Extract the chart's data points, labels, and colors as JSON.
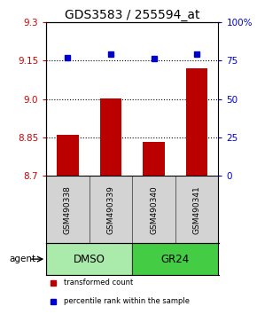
{
  "title": "GDS3583 / 255594_at",
  "samples": [
    "GSM490338",
    "GSM490339",
    "GSM490340",
    "GSM490341"
  ],
  "bar_values": [
    8.862,
    9.001,
    8.832,
    9.12
  ],
  "percentile_values": [
    77,
    79,
    76,
    79
  ],
  "ylim_left": [
    8.7,
    9.3
  ],
  "ylim_right": [
    0,
    100
  ],
  "yticks_left": [
    8.7,
    8.85,
    9.0,
    9.15,
    9.3
  ],
  "yticks_right": [
    0,
    25,
    50,
    75,
    100
  ],
  "ytick_labels_right": [
    "0",
    "25",
    "50",
    "75",
    "100%"
  ],
  "hlines": [
    8.85,
    9.0,
    9.15
  ],
  "bar_color": "#bb0000",
  "dot_color": "#0000cc",
  "bar_bottom": 8.7,
  "bar_width": 0.5,
  "groups": [
    {
      "label": "DMSO",
      "indices": [
        0,
        1
      ],
      "color": "#aaeaaa"
    },
    {
      "label": "GR24",
      "indices": [
        2,
        3
      ],
      "color": "#44cc44"
    }
  ],
  "agent_label": "agent",
  "legend_items": [
    {
      "color": "#bb0000",
      "label": "transformed count"
    },
    {
      "color": "#0000cc",
      "label": "percentile rank within the sample"
    }
  ],
  "title_fontsize": 10,
  "tick_fontsize": 7.5,
  "axis_color_left": "#cc0000",
  "axis_color_right": "#0000cc",
  "sample_name_fontsize": 6.5,
  "group_label_fontsize": 8.5
}
